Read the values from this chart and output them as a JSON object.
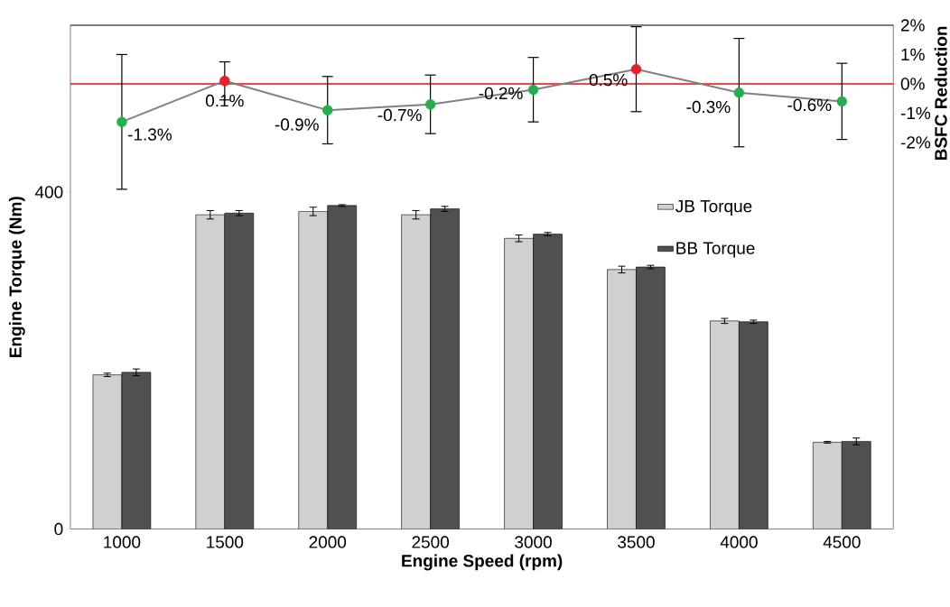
{
  "chart_data": {
    "type": "bar",
    "xlabel": "Engine Speed (rpm)",
    "ylabel": "Engine Torque (Nm)",
    "y2label": "BSFC Reduction",
    "categories": [
      "1000",
      "1500",
      "2000",
      "2500",
      "3000",
      "3500",
      "4000",
      "4500"
    ],
    "series": [
      {
        "name": "JB Torque",
        "color": "#d0d0d0",
        "values": [
          183,
          373,
          377,
          373,
          345,
          308,
          247,
          103
        ],
        "errors": [
          2,
          5,
          5,
          5,
          4,
          4,
          3,
          1
        ]
      },
      {
        "name": "BB Torque",
        "color": "#505050",
        "values": [
          186,
          375,
          384,
          380,
          350,
          311,
          246,
          104
        ],
        "errors": [
          4,
          3,
          1,
          3,
          2,
          2,
          2,
          4
        ]
      },
      {
        "type": "line",
        "axis": "y2",
        "color": "#808080",
        "colors": [
          "#21b14c",
          "#ee1c24",
          "#21b14c",
          "#21b14c",
          "#21b14c",
          "#ee1c24",
          "#21b14c",
          "#21b14c"
        ],
        "values": [
          -1.3,
          0.1,
          -0.9,
          -0.7,
          -0.2,
          0.5,
          -0.3,
          -0.6
        ],
        "errors": [
          2.3,
          0.65,
          1.15,
          1.0,
          1.1,
          1.45,
          1.85,
          1.3
        ],
        "value_labels": [
          "-1.3%",
          "0.1%",
          "-0.9%",
          "-0.7%",
          "-0.2%",
          "0.5%",
          "-0.3%",
          "-0.6%"
        ]
      }
    ],
    "ylim": [
      0,
      598
    ],
    "yticks": [
      0,
      400
    ],
    "y2lim": [
      -15.2,
      2
    ],
    "y2ticks": [
      {
        "value": 2,
        "label": "2%"
      },
      {
        "value": 1,
        "label": "1%"
      },
      {
        "value": 0,
        "label": "0%"
      },
      {
        "value": -1,
        "label": "-1%"
      },
      {
        "value": -2,
        "label": "-2%"
      }
    ],
    "ref_lines": [
      {
        "axis": "y2",
        "value": 0,
        "color": "#ff0000"
      }
    ],
    "marker": "circle",
    "legend": "top right",
    "grid": false
  }
}
